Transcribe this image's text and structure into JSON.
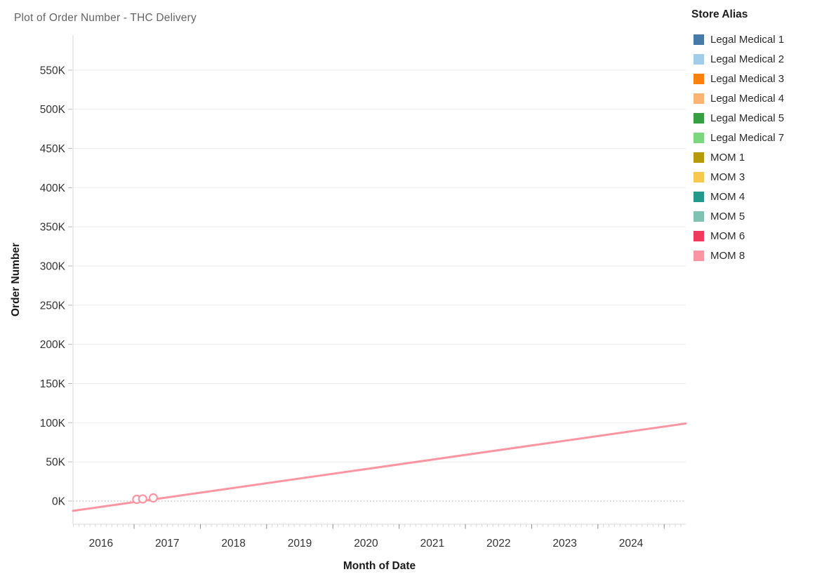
{
  "title": "Plot of Order Number - THC Delivery",
  "legend": {
    "title": "Store Alias",
    "items": [
      {
        "label": "Legal Medical 1",
        "color": "#4779a9"
      },
      {
        "label": "Legal Medical 2",
        "color": "#a3cce9"
      },
      {
        "label": "Legal Medical 3",
        "color": "#fb810e"
      },
      {
        "label": "Legal Medical 4",
        "color": "#fbb474"
      },
      {
        "label": "Legal Medical 5",
        "color": "#379f43"
      },
      {
        "label": "Legal Medical 7",
        "color": "#7cd67f"
      },
      {
        "label": "MOM 1",
        "color": "#b79a0c"
      },
      {
        "label": "MOM 3",
        "color": "#f6c94e"
      },
      {
        "label": "MOM 4",
        "color": "#23998c"
      },
      {
        "label": "MOM 5",
        "color": "#7fc2b1"
      },
      {
        "label": "MOM 6",
        "color": "#ef3a5b"
      },
      {
        "label": "MOM 8",
        "color": "#fb95a1"
      }
    ]
  },
  "chart_data": {
    "type": "line",
    "title": "Plot of Order Number - THC Delivery",
    "xlabel": "Month of Date",
    "ylabel": "Order Number",
    "legend_position": "right",
    "grid": "horizontal",
    "x_axis": {
      "field": "Month of Date",
      "domain_years": [
        2016.078,
        2025.326
      ],
      "year_labels": [
        2016,
        2017,
        2018,
        2019,
        2020,
        2021,
        2022,
        2023,
        2024
      ],
      "minor_tick_interval": "month",
      "major_tick_interval": "year"
    },
    "y_axis": {
      "field": "Order Number",
      "domain_thousands": [
        -29.6,
        594.7
      ],
      "ticks_thousands": [
        0,
        50,
        100,
        150,
        200,
        250,
        300,
        350,
        400,
        450,
        500,
        550
      ],
      "tick_suffix": "K",
      "zero_line_style": "dotted"
    },
    "series": [
      {
        "name": "MOM 8",
        "color": "#fb95a1",
        "marker": "open-circle",
        "points": [
          {
            "month": "2017-01",
            "x_year": 2017.04,
            "order_number_thousands": 2.2
          },
          {
            "month": "2017-02",
            "x_year": 2017.13,
            "order_number_thousands": 2.7
          },
          {
            "month": "2017-04",
            "x_year": 2017.29,
            "order_number_thousands": 4.0
          }
        ],
        "trend_line": {
          "x_years": [
            2016.078,
            2025.326
          ],
          "y_thousands": [
            -12.5,
            99.0
          ]
        }
      }
    ]
  }
}
